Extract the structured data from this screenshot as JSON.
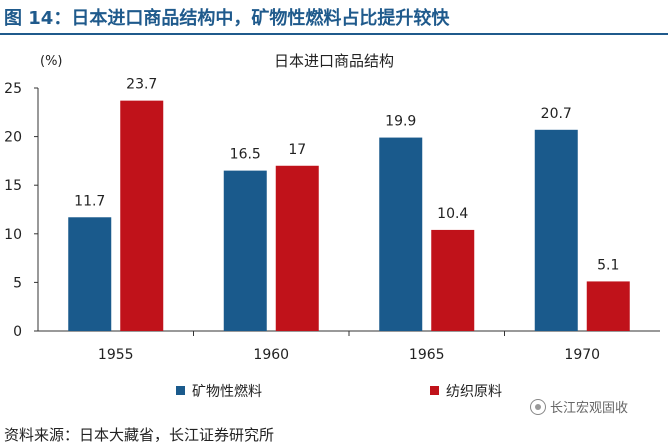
{
  "header": {
    "title": "图 14：日本进口商品结构中，矿物性燃料占比提升较快"
  },
  "chart_data": {
    "type": "bar",
    "title": "日本进口商品结构",
    "ylabel": "(%)",
    "xlabel": "",
    "categories": [
      "1955",
      "1960",
      "1965",
      "1970"
    ],
    "series": [
      {
        "name": "矿物性燃料",
        "values": [
          11.7,
          16.5,
          19.9,
          20.7
        ],
        "labels": [
          "11.7",
          "16.5",
          "19.9",
          "20.7"
        ],
        "color": "#1a5a8c"
      },
      {
        "name": "纺织原料",
        "values": [
          23.7,
          17,
          10.4,
          5.1
        ],
        "labels": [
          "23.7",
          "17",
          "10.4",
          "5.1"
        ],
        "color": "#c0121a"
      }
    ],
    "ylim": [
      0,
      25
    ],
    "yticks": [
      "0",
      "5",
      "10",
      "15",
      "20",
      "25"
    ],
    "grid": false,
    "legend_position": "bottom"
  },
  "footer": {
    "source": "资料来源：日本大藏省，长江证券研究所"
  },
  "watermark": {
    "text": "长江宏观固收"
  }
}
